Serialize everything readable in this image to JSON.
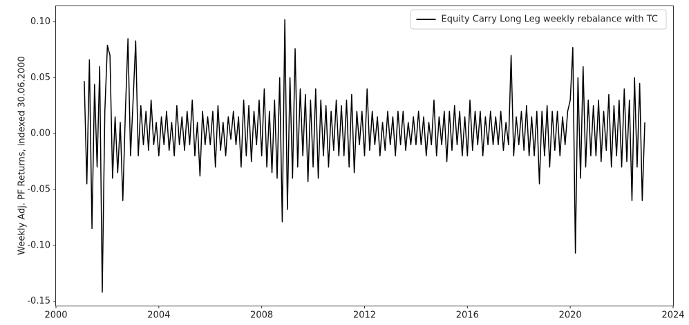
{
  "chart_data": {
    "type": "line",
    "ylabel": "Weekly Adj. PF Returns, indexed 30.06.2000",
    "xlim": [
      2000,
      2024
    ],
    "xticks": [
      2000,
      2004,
      2008,
      2012,
      2016,
      2020,
      2024
    ],
    "ylim": [
      -0.154,
      0.114
    ],
    "yticks": [
      -0.15,
      {
        "value": -0.1,
        "label": "-0.10"
      },
      -0.05,
      {
        "value": 0,
        "label": "0.00"
      },
      0.05,
      {
        "value": 0.1,
        "label": "0.10"
      }
    ],
    "legend": "upper right",
    "grid": false,
    "x": [
      2001.1,
      2001.2,
      2001.3,
      2001.4,
      2001.5,
      2001.6,
      2001.7,
      2001.8,
      2001.9,
      2002.0,
      2002.1,
      2002.2,
      2002.3,
      2002.4,
      2002.5,
      2002.6,
      2002.7,
      2002.8,
      2002.9,
      2003.0,
      2003.1,
      2003.2,
      2003.3,
      2003.4,
      2003.5,
      2003.6,
      2003.7,
      2003.8,
      2003.9,
      2004.0,
      2004.1,
      2004.2,
      2004.3,
      2004.4,
      2004.5,
      2004.6,
      2004.7,
      2004.8,
      2004.9,
      2005.0,
      2005.1,
      2005.2,
      2005.3,
      2005.4,
      2005.5,
      2005.6,
      2005.7,
      2005.8,
      2005.9,
      2006.0,
      2006.1,
      2006.2,
      2006.3,
      2006.4,
      2006.5,
      2006.6,
      2006.7,
      2006.8,
      2006.9,
      2007.0,
      2007.1,
      2007.2,
      2007.3,
      2007.4,
      2007.5,
      2007.6,
      2007.7,
      2007.8,
      2007.9,
      2008.0,
      2008.1,
      2008.2,
      2008.3,
      2008.4,
      2008.5,
      2008.6,
      2008.7,
      2008.8,
      2008.9,
      2009.0,
      2009.1,
      2009.2,
      2009.3,
      2009.4,
      2009.5,
      2009.6,
      2009.7,
      2009.8,
      2009.9,
      2010.0,
      2010.1,
      2010.2,
      2010.3,
      2010.4,
      2010.5,
      2010.6,
      2010.7,
      2010.8,
      2010.9,
      2011.0,
      2011.1,
      2011.2,
      2011.3,
      2011.4,
      2011.5,
      2011.6,
      2011.7,
      2011.8,
      2011.9,
      2012.0,
      2012.1,
      2012.2,
      2012.3,
      2012.4,
      2012.5,
      2012.6,
      2012.7,
      2012.8,
      2012.9,
      2013.0,
      2013.1,
      2013.2,
      2013.3,
      2013.4,
      2013.5,
      2013.6,
      2013.7,
      2013.8,
      2013.9,
      2014.0,
      2014.1,
      2014.2,
      2014.3,
      2014.4,
      2014.5,
      2014.6,
      2014.7,
      2014.8,
      2014.9,
      2015.0,
      2015.1,
      2015.2,
      2015.3,
      2015.4,
      2015.5,
      2015.6,
      2015.7,
      2015.8,
      2015.9,
      2016.0,
      2016.1,
      2016.2,
      2016.3,
      2016.4,
      2016.5,
      2016.6,
      2016.7,
      2016.8,
      2016.9,
      2017.0,
      2017.1,
      2017.2,
      2017.3,
      2017.4,
      2017.5,
      2017.6,
      2017.7,
      2017.8,
      2017.9,
      2018.0,
      2018.1,
      2018.2,
      2018.3,
      2018.4,
      2018.5,
      2018.6,
      2018.7,
      2018.8,
      2018.9,
      2019.0,
      2019.1,
      2019.2,
      2019.3,
      2019.4,
      2019.5,
      2019.6,
      2019.7,
      2019.8,
      2019.9,
      2020.0,
      2020.1,
      2020.2,
      2020.3,
      2020.4,
      2020.5,
      2020.6,
      2020.7,
      2020.8,
      2020.9,
      2021.0,
      2021.1,
      2021.2,
      2021.3,
      2021.4,
      2021.5,
      2021.6,
      2021.7,
      2021.8,
      2021.9,
      2022.0,
      2022.1,
      2022.2,
      2022.3,
      2022.4,
      2022.5,
      2022.6,
      2022.7,
      2022.8,
      2022.9
    ],
    "series": [
      {
        "name": "Equity Carry Long Leg weekly rebalance with TC",
        "color": "#000000",
        "values": [
          0.047,
          -0.045,
          0.066,
          -0.085,
          0.044,
          -0.03,
          0.06,
          -0.142,
          0.02,
          0.079,
          0.07,
          -0.04,
          0.015,
          -0.035,
          0.01,
          -0.06,
          0.02,
          0.085,
          -0.02,
          0.03,
          0.083,
          -0.02,
          0.025,
          -0.01,
          0.02,
          -0.015,
          0.03,
          -0.01,
          0.01,
          -0.02,
          0.015,
          -0.01,
          0.02,
          -0.015,
          0.01,
          -0.02,
          0.025,
          -0.01,
          0.015,
          -0.015,
          0.02,
          -0.01,
          0.03,
          -0.02,
          0.01,
          -0.038,
          0.02,
          -0.01,
          0.015,
          -0.01,
          0.02,
          -0.03,
          0.025,
          -0.015,
          0.01,
          -0.02,
          0.015,
          -0.005,
          0.02,
          -0.01,
          0.015,
          -0.03,
          0.03,
          -0.02,
          0.025,
          -0.025,
          0.02,
          -0.01,
          0.03,
          -0.02,
          0.04,
          -0.03,
          0.02,
          -0.035,
          0.03,
          -0.04,
          0.05,
          -0.079,
          0.102,
          -0.068,
          0.05,
          -0.04,
          0.076,
          -0.03,
          0.04,
          -0.02,
          0.035,
          -0.043,
          0.03,
          -0.03,
          0.04,
          -0.04,
          0.03,
          -0.02,
          0.025,
          -0.03,
          0.02,
          -0.015,
          0.03,
          -0.02,
          0.025,
          -0.02,
          0.03,
          -0.03,
          0.035,
          -0.035,
          0.02,
          -0.01,
          0.02,
          -0.02,
          0.04,
          -0.015,
          0.02,
          -0.01,
          0.015,
          -0.02,
          0.01,
          -0.015,
          0.02,
          -0.01,
          0.015,
          -0.02,
          0.02,
          -0.01,
          0.02,
          -0.015,
          0.01,
          -0.01,
          0.015,
          -0.01,
          0.02,
          -0.01,
          0.015,
          -0.02,
          0.01,
          -0.01,
          0.03,
          -0.02,
          0.015,
          -0.01,
          0.02,
          -0.025,
          0.02,
          -0.015,
          0.025,
          -0.01,
          0.02,
          -0.02,
          0.015,
          -0.02,
          0.03,
          -0.015,
          0.02,
          -0.01,
          0.02,
          -0.02,
          0.015,
          -0.01,
          0.02,
          -0.01,
          0.015,
          -0.01,
          0.02,
          -0.015,
          0.01,
          -0.01,
          0.07,
          -0.02,
          0.015,
          -0.01,
          0.02,
          -0.015,
          0.025,
          -0.02,
          0.015,
          -0.02,
          0.02,
          -0.045,
          0.02,
          -0.02,
          0.025,
          -0.03,
          0.02,
          -0.015,
          0.02,
          -0.02,
          0.015,
          -0.01,
          0.02,
          0.03,
          0.077,
          -0.107,
          0.05,
          -0.04,
          0.06,
          -0.03,
          0.03,
          -0.02,
          0.025,
          -0.02,
          0.03,
          -0.025,
          0.02,
          -0.015,
          0.035,
          -0.03,
          0.025,
          -0.02,
          0.03,
          -0.03,
          0.04,
          -0.025,
          0.03,
          -0.06,
          0.05,
          -0.03,
          0.045,
          -0.06,
          0.01
        ]
      }
    ]
  }
}
